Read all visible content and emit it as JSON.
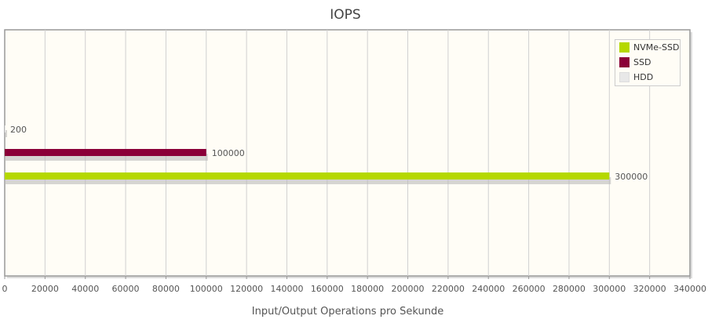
{
  "chart_data": {
    "type": "bar",
    "orientation": "horizontal",
    "title": "IOPS",
    "xlabel": "Input/Output Operations pro Sekunde",
    "ylabel": "",
    "xlim": [
      0,
      340000
    ],
    "xticks": [
      0,
      20000,
      40000,
      60000,
      80000,
      100000,
      120000,
      140000,
      160000,
      180000,
      200000,
      220000,
      240000,
      260000,
      280000,
      300000,
      320000,
      340000
    ],
    "grid": true,
    "legend_position": "top-right",
    "series": [
      {
        "name": "NVMe-SSD",
        "value": 300000,
        "label": "300000",
        "color": "#b5d800"
      },
      {
        "name": "SSD",
        "value": 100000,
        "label": "100000",
        "color": "#8b0038"
      },
      {
        "name": "HDD",
        "value": 200,
        "label": "200",
        "color": "#e8e8e8"
      }
    ]
  }
}
